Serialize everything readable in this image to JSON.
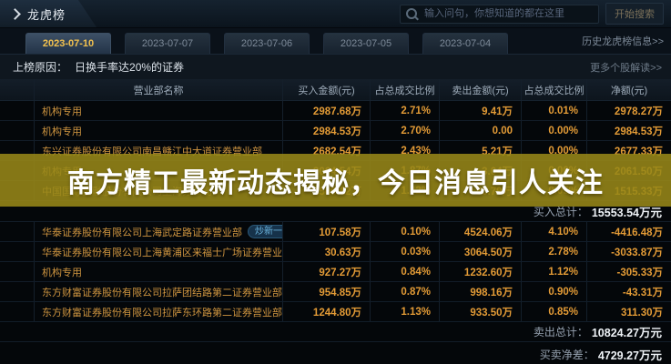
{
  "colors": {
    "accent": "#f2c14e",
    "number": "#e39b36",
    "name_text": "#cf9540",
    "banner_bg": "#978718",
    "banner_text": "#ffffff",
    "badge_text": "#6cb6e0",
    "total_value": "#eef2f6"
  },
  "header": {
    "title": "龙虎榜",
    "search_placeholder": "输入问句，你想知道的都在这里",
    "search_button": "开始搜索"
  },
  "date_tabs": {
    "tabs": [
      {
        "label": "2023-07-10",
        "selected": true
      },
      {
        "label": "2023-07-07",
        "selected": false
      },
      {
        "label": "2023-07-06",
        "selected": false
      },
      {
        "label": "2023-07-05",
        "selected": false
      },
      {
        "label": "2023-07-04",
        "selected": false
      }
    ],
    "history_link": "历史龙虎榜信息>>"
  },
  "reason": {
    "label": "上榜原因：",
    "text": "日换手率达20%的证券",
    "more_link": "更多个股解读>>"
  },
  "table": {
    "headers": [
      "营业部名称",
      "买入金额(元)",
      "占总成交比例",
      "卖出金额(元)",
      "占总成交比例",
      "净额(元)"
    ],
    "buy_rows": [
      {
        "name": "机构专用",
        "buy": "2987.68万",
        "buy_pct": "2.71%",
        "sell": "9.41万",
        "sell_pct": "0.01%",
        "net": "2978.27万"
      },
      {
        "name": "机构专用",
        "buy": "2984.53万",
        "buy_pct": "2.70%",
        "sell": "0.00",
        "sell_pct": "0.00%",
        "net": "2984.53万"
      },
      {
        "name": "东兴证券股份有限公司南昌赣江中大道证券营业部",
        "buy": "2682.54万",
        "buy_pct": "2.43%",
        "sell": "5.21万",
        "sell_pct": "0.00%",
        "net": "2677.33万"
      },
      {
        "name": "机构专用",
        "buy": "2064.54万",
        "buy_pct": "1.87%",
        "sell": "3.04万",
        "sell_pct": "0.00%",
        "net": "2061.50万"
      },
      {
        "name": "中国国际金融股份有限公司上海分公司",
        "buy": "1569.12万",
        "buy_pct": "1.42%",
        "sell": "53.79万",
        "sell_pct": "0.05%",
        "net": "1515.33万"
      }
    ],
    "buy_total_label": "买入总计：",
    "buy_total_value": "15553.54万元",
    "sell_rows": [
      {
        "name": "华泰证券股份有限公司上海武定路证券营业部",
        "badge": "炒新一族",
        "buy": "107.58万",
        "buy_pct": "0.10%",
        "sell": "4524.06万",
        "sell_pct": "4.10%",
        "net": "-4416.48万"
      },
      {
        "name": "华泰证券股份有限公司上海黄浦区来福士广场证券营业部",
        "buy": "30.63万",
        "buy_pct": "0.03%",
        "sell": "3064.50万",
        "sell_pct": "2.78%",
        "net": "-3033.87万"
      },
      {
        "name": "机构专用",
        "buy": "927.27万",
        "buy_pct": "0.84%",
        "sell": "1232.60万",
        "sell_pct": "1.12%",
        "net": "-305.33万"
      },
      {
        "name": "东方财富证券股份有限公司拉萨团结路第二证券营业部",
        "buy": "954.85万",
        "buy_pct": "0.87%",
        "sell": "998.16万",
        "sell_pct": "0.90%",
        "net": "-43.31万"
      },
      {
        "name": "东方财富证券股份有限公司拉萨东环路第二证券营业部",
        "buy": "1244.80万",
        "buy_pct": "1.13%",
        "sell": "933.50万",
        "sell_pct": "0.85%",
        "net": "311.30万"
      }
    ],
    "sell_total_label": "卖出总计：",
    "sell_total_value": "10824.27万元",
    "net_total_label": "买卖净差：",
    "net_total_value": "4729.27万元"
  },
  "banner": {
    "text": "南方精工最新动态揭秘，今日消息引人关注"
  }
}
